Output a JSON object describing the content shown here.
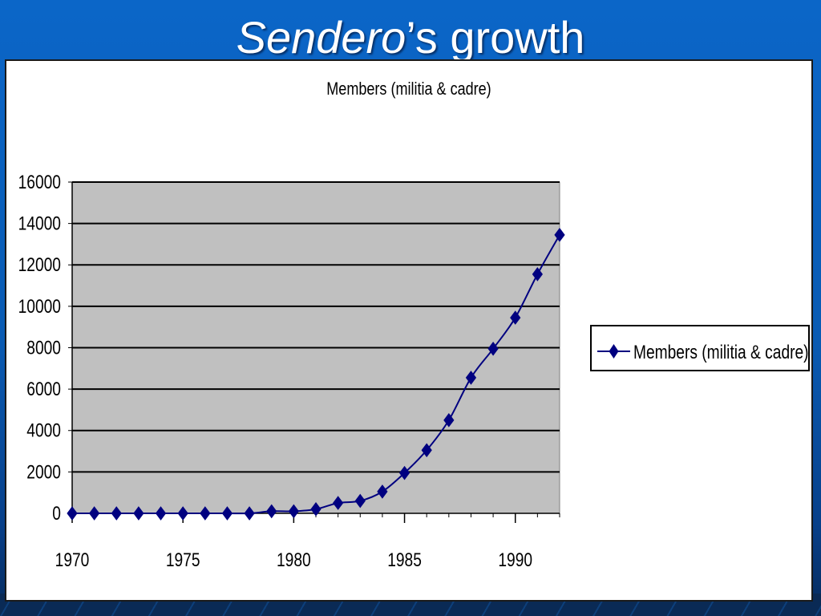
{
  "slide": {
    "title_italic": "Sendero",
    "title_rest": "’s growth"
  },
  "colors": {
    "background": "#0a63c4",
    "plot_area": "#c0c0c0",
    "series": "#000080",
    "gridline": "#000000"
  },
  "chart_data": {
    "type": "line",
    "title": "Members (militia & cadre)",
    "xlabel": "",
    "ylabel": "",
    "x": [
      1970,
      1971,
      1972,
      1973,
      1974,
      1975,
      1976,
      1977,
      1978,
      1979,
      1980,
      1981,
      1982,
      1983,
      1984,
      1985,
      1986,
      1987,
      1988,
      1989,
      1990,
      1991,
      1992
    ],
    "series": [
      {
        "name": "Members (militia & cadre)",
        "marker": "diamond",
        "values": [
          0,
          0,
          0,
          0,
          0,
          0,
          0,
          0,
          0,
          100,
          100,
          200,
          500,
          600,
          1050,
          1950,
          3050,
          4500,
          6550,
          7950,
          9450,
          11550,
          13450
        ]
      }
    ],
    "xlim": [
      1970,
      1992
    ],
    "ylim": [
      0,
      16000
    ],
    "x_ticks": [
      "1970",
      "1975",
      "1980",
      "1985",
      "1990"
    ],
    "y_ticks": [
      "0",
      "2000",
      "4000",
      "6000",
      "8000",
      "10000",
      "12000",
      "14000",
      "16000"
    ],
    "grid": true,
    "legend_position": "right"
  }
}
